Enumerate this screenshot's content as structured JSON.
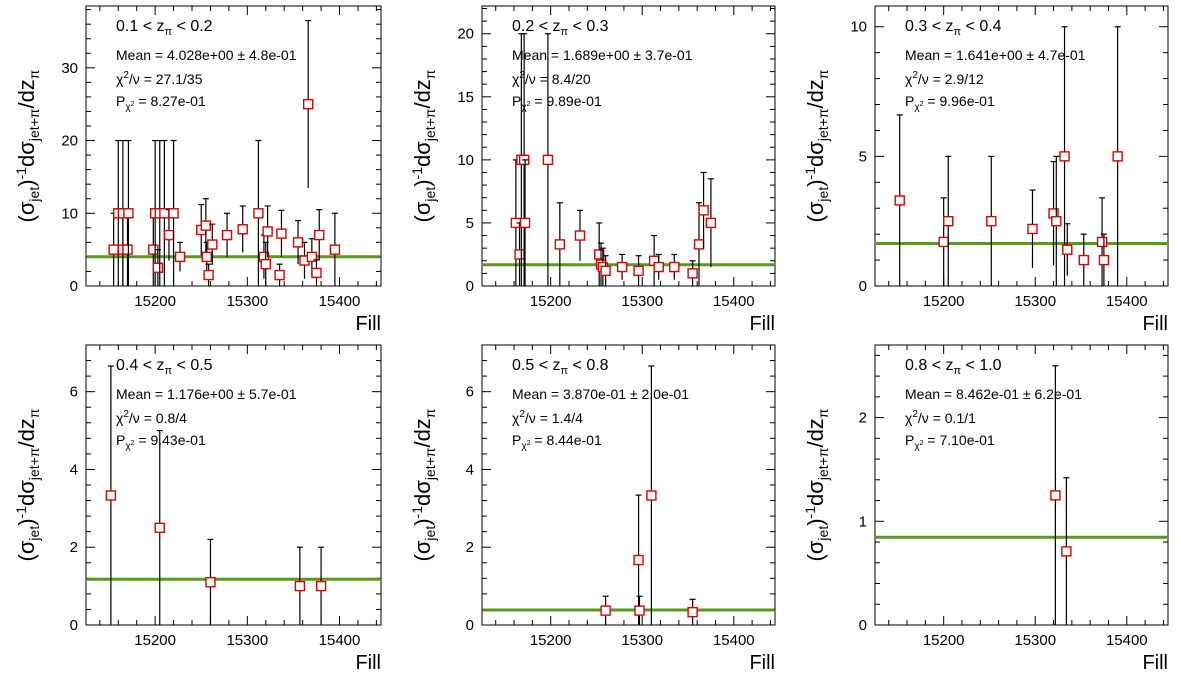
{
  "figure": {
    "ylabel_parts": [
      "(σ",
      "jet",
      ")",
      "-1",
      "dσ",
      "jet+π",
      "/dz",
      "π"
    ],
    "xlabel": "Fill",
    "fit_color": "#5a9a1a",
    "marker_color": "#dd0000"
  },
  "chart_data": [
    {
      "type": "scatter",
      "range_label": {
        "lo": "0.1",
        "var": "z",
        "sub": "π",
        "hi": "0.2"
      },
      "mean_text": "Mean = 4.028e+00 ± 4.8e-01",
      "chi2_value": " = 27.1/35",
      "prob_value": " = 8.27e-01",
      "xlabel": "Fill",
      "xlim": [
        15125,
        15445
      ],
      "ylim": [
        0,
        38.5
      ],
      "xticks": [
        15200,
        15300,
        15400
      ],
      "yticks": [
        0,
        10,
        20,
        30
      ],
      "fit": 4.028,
      "points": [
        {
          "x": 15155,
          "y": 5,
          "err": 5
        },
        {
          "x": 15160,
          "y": 10,
          "err": 10
        },
        {
          "x": 15165,
          "y": 5,
          "err": 5
        },
        {
          "x": 15165,
          "y": 10,
          "err": 10
        },
        {
          "x": 15170,
          "y": 5,
          "err": 5
        },
        {
          "x": 15171,
          "y": 10,
          "err": 10
        },
        {
          "x": 15198,
          "y": 5,
          "err": 5
        },
        {
          "x": 15200,
          "y": 10,
          "err": 10
        },
        {
          "x": 15203,
          "y": 2.5,
          "err": 2.5
        },
        {
          "x": 15205,
          "y": 10,
          "err": 10
        },
        {
          "x": 15210,
          "y": 10,
          "err": 10
        },
        {
          "x": 15215,
          "y": 7,
          "err": 3.5
        },
        {
          "x": 15220,
          "y": 10,
          "err": 10
        },
        {
          "x": 15227,
          "y": 4,
          "err": 2
        },
        {
          "x": 15250,
          "y": 7.7,
          "err": 3.5
        },
        {
          "x": 15255,
          "y": 8.3,
          "err": 3.7
        },
        {
          "x": 15256,
          "y": 4,
          "err": 2
        },
        {
          "x": 15258,
          "y": 1.5,
          "err": 1.5
        },
        {
          "x": 15262,
          "y": 5.7,
          "err": 2.8
        },
        {
          "x": 15278,
          "y": 7,
          "err": 3
        },
        {
          "x": 15295,
          "y": 7.8,
          "err": 3.2
        },
        {
          "x": 15312,
          "y": 10,
          "err": 10
        },
        {
          "x": 15318,
          "y": 4,
          "err": 3
        },
        {
          "x": 15320,
          "y": 3,
          "err": 3
        },
        {
          "x": 15322,
          "y": 7.5,
          "err": 3.5
        },
        {
          "x": 15335,
          "y": 1.5,
          "err": 1.5
        },
        {
          "x": 15337,
          "y": 7.2,
          "err": 3.2
        },
        {
          "x": 15355,
          "y": 6,
          "err": 3
        },
        {
          "x": 15362,
          "y": 3.5,
          "err": 2.5
        },
        {
          "x": 15366,
          "y": 25,
          "err": 11.5
        },
        {
          "x": 15370,
          "y": 4,
          "err": 2.5
        },
        {
          "x": 15375,
          "y": 1.8,
          "err": 1.8
        },
        {
          "x": 15378,
          "y": 7,
          "err": 3.5
        },
        {
          "x": 15395,
          "y": 5,
          "err": 5
        }
      ]
    },
    {
      "type": "scatter",
      "range_label": {
        "lo": "0.2",
        "var": "z",
        "sub": "π",
        "hi": "0.3"
      },
      "mean_text": "Mean = 1.689e+00 ± 3.7e-01",
      "chi2_value": " = 8.4/20",
      "prob_value": " = 9.89e-01",
      "xlabel": "Fill",
      "xlim": [
        15125,
        15445
      ],
      "ylim": [
        0,
        22.2
      ],
      "xticks": [
        15200,
        15300,
        15400
      ],
      "yticks": [
        0,
        5,
        10,
        15,
        20
      ],
      "fit": 1.689,
      "points": [
        {
          "x": 15162,
          "y": 5,
          "err": 5
        },
        {
          "x": 15166,
          "y": 2.5,
          "err": 2.5
        },
        {
          "x": 15168,
          "y": 10,
          "err": 10
        },
        {
          "x": 15171,
          "y": 10,
          "err": 10
        },
        {
          "x": 15172,
          "y": 5,
          "err": 5
        },
        {
          "x": 15197,
          "y": 10,
          "err": 10
        },
        {
          "x": 15210,
          "y": 3.3,
          "err": 3.3
        },
        {
          "x": 15232,
          "y": 4,
          "err": 2
        },
        {
          "x": 15253,
          "y": 2.5,
          "err": 2.5
        },
        {
          "x": 15255,
          "y": 1.7,
          "err": 1.7
        },
        {
          "x": 15257,
          "y": 1.5,
          "err": 1.5
        },
        {
          "x": 15260,
          "y": 1.2,
          "err": 1.2
        },
        {
          "x": 15278,
          "y": 1.5,
          "err": 1
        },
        {
          "x": 15296,
          "y": 1.2,
          "err": 1.2
        },
        {
          "x": 15313,
          "y": 2,
          "err": 2
        },
        {
          "x": 15318,
          "y": 1.5,
          "err": 1
        },
        {
          "x": 15335,
          "y": 1.5,
          "err": 1
        },
        {
          "x": 15355,
          "y": 1,
          "err": 1
        },
        {
          "x": 15362,
          "y": 3.3,
          "err": 3.3
        },
        {
          "x": 15367,
          "y": 6,
          "err": 3
        },
        {
          "x": 15375,
          "y": 5,
          "err": 3.5
        }
      ]
    },
    {
      "type": "scatter",
      "range_label": {
        "lo": "0.3",
        "var": "z",
        "sub": "π",
        "hi": "0.4"
      },
      "mean_text": "Mean = 1.641e+00 ± 4.7e-01",
      "chi2_value": " = 2.9/12",
      "prob_value": " = 9.96e-01",
      "xlabel": "Fill",
      "xlim": [
        15125,
        15445
      ],
      "ylim": [
        0,
        10.8
      ],
      "xticks": [
        15200,
        15300,
        15400
      ],
      "yticks": [
        0,
        5,
        10
      ],
      "fit": 1.641,
      "points": [
        {
          "x": 15152,
          "y": 3.3,
          "err": 3.3
        },
        {
          "x": 15200,
          "y": 1.7,
          "err": 1.7
        },
        {
          "x": 15205,
          "y": 2.5,
          "err": 2.5
        },
        {
          "x": 15252,
          "y": 2.5,
          "err": 2.5
        },
        {
          "x": 15297,
          "y": 2.2,
          "err": 1.5
        },
        {
          "x": 15320,
          "y": 2.8,
          "err": 2
        },
        {
          "x": 15323,
          "y": 2.5,
          "err": 2.5
        },
        {
          "x": 15332,
          "y": 5,
          "err": 5
        },
        {
          "x": 15335,
          "y": 1.4,
          "err": 1
        },
        {
          "x": 15353,
          "y": 1,
          "err": 1
        },
        {
          "x": 15373,
          "y": 1.7,
          "err": 1.7
        },
        {
          "x": 15375,
          "y": 1,
          "err": 1
        },
        {
          "x": 15390,
          "y": 5,
          "err": 5
        }
      ]
    },
    {
      "type": "scatter",
      "range_label": {
        "lo": "0.4",
        "var": "z",
        "sub": "π",
        "hi": "0.5"
      },
      "mean_text": "Mean = 1.176e+00 ± 5.7e-01",
      "chi2_value": " = 0.8/4",
      "prob_value": " = 9.43e-01",
      "xlabel": "Fill",
      "xlim": [
        15125,
        15445
      ],
      "ylim": [
        0,
        7.2
      ],
      "xticks": [
        15200,
        15300,
        15400
      ],
      "yticks": [
        0,
        2,
        4,
        6
      ],
      "fit": 1.176,
      "points": [
        {
          "x": 15152,
          "y": 3.33,
          "err": 3.33
        },
        {
          "x": 15205,
          "y": 2.5,
          "err": 2.5
        },
        {
          "x": 15260,
          "y": 1.1,
          "err": 1.1
        },
        {
          "x": 15357,
          "y": 1.0,
          "err": 1.0
        },
        {
          "x": 15380,
          "y": 1.0,
          "err": 1.0
        }
      ]
    },
    {
      "type": "scatter",
      "range_label": {
        "lo": "0.5",
        "var": "z",
        "sub": "π",
        "hi": "0.8"
      },
      "mean_text": "Mean = 3.870e-01 ± 2.0e-01",
      "chi2_value": " = 1.4/4",
      "prob_value": " = 8.44e-01",
      "xlabel": "Fill",
      "xlim": [
        15125,
        15445
      ],
      "ylim": [
        0,
        7.2
      ],
      "xticks": [
        15200,
        15300,
        15400
      ],
      "yticks": [
        0,
        2,
        4,
        6
      ],
      "fit": 0.387,
      "points": [
        {
          "x": 15260,
          "y": 0.37,
          "err": 0.37
        },
        {
          "x": 15296,
          "y": 1.67,
          "err": 1.67
        },
        {
          "x": 15297,
          "y": 0.37,
          "err": 0.37
        },
        {
          "x": 15310,
          "y": 3.33,
          "err": 3.33
        },
        {
          "x": 15355,
          "y": 0.33,
          "err": 0.33
        }
      ]
    },
    {
      "type": "scatter",
      "range_label": {
        "lo": "0.8",
        "var": "z",
        "sub": "π",
        "hi": "1.0"
      },
      "mean_text": "Mean = 8.462e-01 ± 6.2e-01",
      "chi2_value": " = 0.1/1",
      "prob_value": " = 7.10e-01",
      "xlabel": "Fill",
      "xlim": [
        15125,
        15445
      ],
      "ylim": [
        0,
        2.7
      ],
      "xticks": [
        15200,
        15300,
        15400
      ],
      "yticks": [
        0,
        1,
        2
      ],
      "fit": 0.846,
      "points": [
        {
          "x": 15322,
          "y": 1.25,
          "err": 1.25
        },
        {
          "x": 15334,
          "y": 0.71,
          "err": 0.71
        }
      ]
    }
  ]
}
